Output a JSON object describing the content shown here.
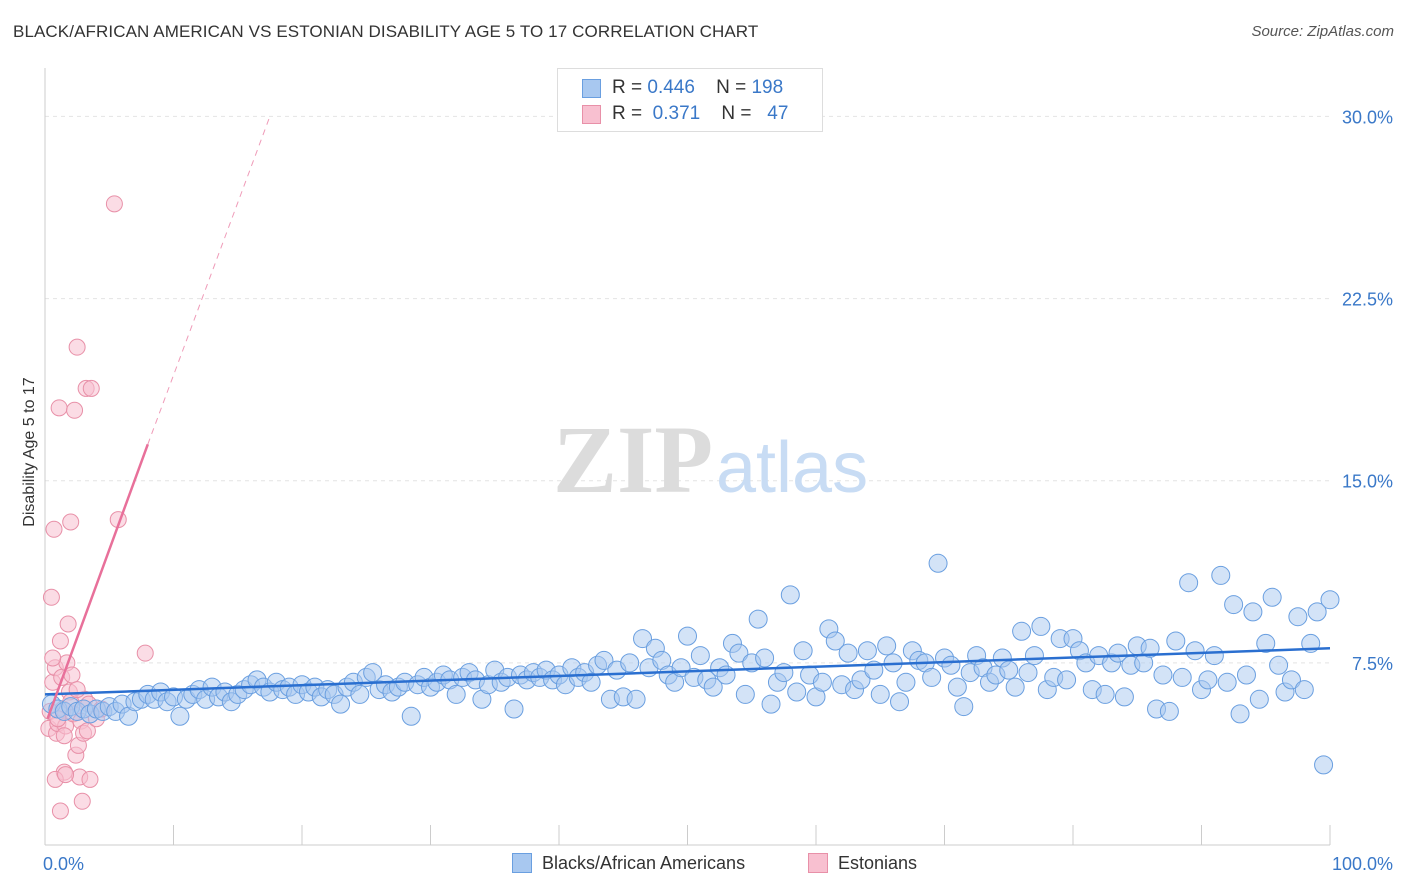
{
  "title": "BLACK/AFRICAN AMERICAN VS ESTONIAN DISABILITY AGE 5 TO 17 CORRELATION CHART",
  "source": "Source: ZipAtlas.com",
  "watermark": {
    "zip": "ZIP",
    "atlas": "atlas"
  },
  "legend": {
    "rows": [
      {
        "r_label": "R =",
        "r_value": "0.446",
        "n_label": "N =",
        "n_value": "198",
        "color": "#a8c8f0",
        "border": "#6a9fe0"
      },
      {
        "r_label": "R =",
        "r_value": "0.371",
        "n_label": "N =",
        "n_value": "47",
        "color": "#f8c0d0",
        "border": "#e890a8"
      }
    ]
  },
  "bottom_legend": [
    {
      "label": "Blacks/African Americans",
      "color": "#a8c8f0",
      "border": "#6a9fe0"
    },
    {
      "label": "Estonians",
      "color": "#f8c0d0",
      "border": "#e890a8"
    }
  ],
  "chart_data": {
    "type": "scatter",
    "title": "BLACK/AFRICAN AMERICAN VS ESTONIAN DISABILITY AGE 5 TO 17 CORRELATION CHART",
    "xlabel": "",
    "ylabel": "Disability Age 5 to 17",
    "xlim": [
      0,
      100
    ],
    "ylim": [
      0,
      31.5
    ],
    "x_tick_labels": [
      "0.0%",
      "100.0%"
    ],
    "y_ticks": [
      7.5,
      15.0,
      22.5,
      30.0
    ],
    "y_tick_labels": [
      "7.5%",
      "15.0%",
      "22.5%",
      "30.0%"
    ],
    "grid": true,
    "legend_position": "top-center",
    "colors": {
      "blue": "#6a9fe0",
      "blue_fill": "#a8c8f0",
      "blue_line": "#2a6fd0",
      "pink": "#e890a8",
      "pink_fill": "#f8c0d0",
      "pink_line": "#e8709a",
      "tick_label": "#3a78c8"
    },
    "series": [
      {
        "name": "Blacks/African Americans",
        "trend": {
          "x": [
            0,
            100
          ],
          "y": [
            6.2,
            8.1
          ]
        },
        "points": [
          [
            0.5,
            5.8
          ],
          [
            1.0,
            5.6
          ],
          [
            1.5,
            5.5
          ],
          [
            2.0,
            5.7
          ],
          [
            2.5,
            5.5
          ],
          [
            3.0,
            5.6
          ],
          [
            3.5,
            5.4
          ],
          [
            4.0,
            5.6
          ],
          [
            4.5,
            5.5
          ],
          [
            5.0,
            5.7
          ],
          [
            5.5,
            5.5
          ],
          [
            6.0,
            5.8
          ],
          [
            6.5,
            5.3
          ],
          [
            7.0,
            5.9
          ],
          [
            7.5,
            6.0
          ],
          [
            8.0,
            6.2
          ],
          [
            8.5,
            6.0
          ],
          [
            9.0,
            6.3
          ],
          [
            9.5,
            5.9
          ],
          [
            10.0,
            6.1
          ],
          [
            10.5,
            5.3
          ],
          [
            11.0,
            6.0
          ],
          [
            11.5,
            6.2
          ],
          [
            12.0,
            6.4
          ],
          [
            12.5,
            6.0
          ],
          [
            13.0,
            6.5
          ],
          [
            13.5,
            6.1
          ],
          [
            14.0,
            6.3
          ],
          [
            14.5,
            5.9
          ],
          [
            15.0,
            6.2
          ],
          [
            15.5,
            6.4
          ],
          [
            16.0,
            6.6
          ],
          [
            16.5,
            6.8
          ],
          [
            17.0,
            6.5
          ],
          [
            17.5,
            6.3
          ],
          [
            18.0,
            6.7
          ],
          [
            18.5,
            6.4
          ],
          [
            19.0,
            6.5
          ],
          [
            19.5,
            6.2
          ],
          [
            20.0,
            6.6
          ],
          [
            20.5,
            6.3
          ],
          [
            21.0,
            6.5
          ],
          [
            21.5,
            6.1
          ],
          [
            22.0,
            6.4
          ],
          [
            22.5,
            6.2
          ],
          [
            23.0,
            5.8
          ],
          [
            23.5,
            6.5
          ],
          [
            24.0,
            6.7
          ],
          [
            24.5,
            6.2
          ],
          [
            25.0,
            6.9
          ],
          [
            25.5,
            7.1
          ],
          [
            26.0,
            6.4
          ],
          [
            26.5,
            6.6
          ],
          [
            27.0,
            6.3
          ],
          [
            27.5,
            6.5
          ],
          [
            28.0,
            6.7
          ],
          [
            28.5,
            5.3
          ],
          [
            29.0,
            6.6
          ],
          [
            29.5,
            6.9
          ],
          [
            30.0,
            6.5
          ],
          [
            30.5,
            6.7
          ],
          [
            31.0,
            7.0
          ],
          [
            31.5,
            6.8
          ],
          [
            32.0,
            6.2
          ],
          [
            32.5,
            6.9
          ],
          [
            33.0,
            7.1
          ],
          [
            33.5,
            6.8
          ],
          [
            34.0,
            6.0
          ],
          [
            34.5,
            6.6
          ],
          [
            35.0,
            7.2
          ],
          [
            35.5,
            6.7
          ],
          [
            36.0,
            6.9
          ],
          [
            36.5,
            5.6
          ],
          [
            37.0,
            7.0
          ],
          [
            37.5,
            6.8
          ],
          [
            38.0,
            7.1
          ],
          [
            38.5,
            6.9
          ],
          [
            39.0,
            7.2
          ],
          [
            39.5,
            6.8
          ],
          [
            40.0,
            7.0
          ],
          [
            40.5,
            6.6
          ],
          [
            41.0,
            7.3
          ],
          [
            41.5,
            6.9
          ],
          [
            42.0,
            7.1
          ],
          [
            42.5,
            6.7
          ],
          [
            43.0,
            7.4
          ],
          [
            43.5,
            7.6
          ],
          [
            44.0,
            6.0
          ],
          [
            44.5,
            7.2
          ],
          [
            45.0,
            6.1
          ],
          [
            45.5,
            7.5
          ],
          [
            46.0,
            6.0
          ],
          [
            46.5,
            8.5
          ],
          [
            47.0,
            7.3
          ],
          [
            47.5,
            8.1
          ],
          [
            48.0,
            7.6
          ],
          [
            48.5,
            7.0
          ],
          [
            49.0,
            6.7
          ],
          [
            49.5,
            7.3
          ],
          [
            50.0,
            8.6
          ],
          [
            50.5,
            6.9
          ],
          [
            51.0,
            7.8
          ],
          [
            51.5,
            6.8
          ],
          [
            52.0,
            6.5
          ],
          [
            52.5,
            7.3
          ],
          [
            53.0,
            7.0
          ],
          [
            53.5,
            8.3
          ],
          [
            54.0,
            7.9
          ],
          [
            54.5,
            6.2
          ],
          [
            55.0,
            7.5
          ],
          [
            55.5,
            9.3
          ],
          [
            56.0,
            7.7
          ],
          [
            56.5,
            5.8
          ],
          [
            57.0,
            6.7
          ],
          [
            57.5,
            7.1
          ],
          [
            58.0,
            10.3
          ],
          [
            58.5,
            6.3
          ],
          [
            59.0,
            8.0
          ],
          [
            59.5,
            7.0
          ],
          [
            60.0,
            6.1
          ],
          [
            60.5,
            6.7
          ],
          [
            61.0,
            8.9
          ],
          [
            61.5,
            8.4
          ],
          [
            62.0,
            6.6
          ],
          [
            62.5,
            7.9
          ],
          [
            63.0,
            6.4
          ],
          [
            63.5,
            6.8
          ],
          [
            64.0,
            8.0
          ],
          [
            64.5,
            7.2
          ],
          [
            65.0,
            6.2
          ],
          [
            65.5,
            8.2
          ],
          [
            66.0,
            7.5
          ],
          [
            66.5,
            5.9
          ],
          [
            67.0,
            6.7
          ],
          [
            67.5,
            8.0
          ],
          [
            68.0,
            7.6
          ],
          [
            68.5,
            7.5
          ],
          [
            69.0,
            6.9
          ],
          [
            69.5,
            11.6
          ],
          [
            70.0,
            7.7
          ],
          [
            70.5,
            7.4
          ],
          [
            71.0,
            6.5
          ],
          [
            71.5,
            5.7
          ],
          [
            72.0,
            7.1
          ],
          [
            72.5,
            7.8
          ],
          [
            73.0,
            7.3
          ],
          [
            73.5,
            6.7
          ],
          [
            74.0,
            7.0
          ],
          [
            74.5,
            7.7
          ],
          [
            75.0,
            7.2
          ],
          [
            75.5,
            6.5
          ],
          [
            76.0,
            8.8
          ],
          [
            76.5,
            7.1
          ],
          [
            77.0,
            7.8
          ],
          [
            77.5,
            9.0
          ],
          [
            78.0,
            6.4
          ],
          [
            78.5,
            6.9
          ],
          [
            79.0,
            8.5
          ],
          [
            79.5,
            6.8
          ],
          [
            80.0,
            8.5
          ],
          [
            80.5,
            8.0
          ],
          [
            81.0,
            7.5
          ],
          [
            81.5,
            6.4
          ],
          [
            82.0,
            7.8
          ],
          [
            82.5,
            6.2
          ],
          [
            83.0,
            7.5
          ],
          [
            83.5,
            7.9
          ],
          [
            84.0,
            6.1
          ],
          [
            84.5,
            7.4
          ],
          [
            85.0,
            8.2
          ],
          [
            85.5,
            7.5
          ],
          [
            86.0,
            8.1
          ],
          [
            86.5,
            5.6
          ],
          [
            87.0,
            7.0
          ],
          [
            87.5,
            5.5
          ],
          [
            88.0,
            8.4
          ],
          [
            88.5,
            6.9
          ],
          [
            89.0,
            10.8
          ],
          [
            89.5,
            8.0
          ],
          [
            90.0,
            6.4
          ],
          [
            90.5,
            6.8
          ],
          [
            91.0,
            7.8
          ],
          [
            91.5,
            11.1
          ],
          [
            92.0,
            6.7
          ],
          [
            92.5,
            9.9
          ],
          [
            93.0,
            5.4
          ],
          [
            93.5,
            7.0
          ],
          [
            94.0,
            9.6
          ],
          [
            94.5,
            6.0
          ],
          [
            95.0,
            8.3
          ],
          [
            95.5,
            10.2
          ],
          [
            96.0,
            7.4
          ],
          [
            96.5,
            6.3
          ],
          [
            97.0,
            6.8
          ],
          [
            97.5,
            9.4
          ],
          [
            98.0,
            6.4
          ],
          [
            98.5,
            8.3
          ],
          [
            99.0,
            9.6
          ],
          [
            99.5,
            3.3
          ],
          [
            100.0,
            10.1
          ]
        ]
      },
      {
        "name": "Estonians",
        "trend": {
          "x": [
            0.2,
            8.0
          ],
          "y": [
            5.2,
            16.5
          ]
        },
        "trend_extension": {
          "x": [
            8.0,
            17.5
          ],
          "y": [
            16.5,
            30.0
          ]
        },
        "points": [
          [
            0.3,
            4.8
          ],
          [
            0.4,
            5.5
          ],
          [
            0.5,
            10.2
          ],
          [
            0.6,
            6.7
          ],
          [
            0.7,
            13.0
          ],
          [
            0.8,
            7.3
          ],
          [
            0.9,
            4.6
          ],
          [
            1.0,
            5.0
          ],
          [
            1.1,
            18.0
          ],
          [
            1.2,
            8.4
          ],
          [
            1.3,
            6.9
          ],
          [
            1.4,
            5.6
          ],
          [
            1.5,
            3.0
          ],
          [
            1.6,
            4.9
          ],
          [
            1.7,
            7.5
          ],
          [
            1.8,
            9.1
          ],
          [
            1.9,
            6.3
          ],
          [
            2.0,
            13.3
          ],
          [
            2.1,
            7.0
          ],
          [
            2.2,
            5.4
          ],
          [
            2.3,
            17.9
          ],
          [
            2.4,
            3.7
          ],
          [
            2.5,
            20.5
          ],
          [
            2.6,
            4.1
          ],
          [
            2.7,
            2.8
          ],
          [
            2.8,
            5.1
          ],
          [
            2.9,
            1.8
          ],
          [
            3.0,
            4.6
          ],
          [
            3.1,
            6.0
          ],
          [
            3.2,
            18.8
          ],
          [
            3.3,
            4.7
          ],
          [
            3.4,
            5.8
          ],
          [
            3.5,
            2.7
          ],
          [
            4.0,
            5.2
          ],
          [
            4.4,
            5.6
          ],
          [
            5.4,
            26.4
          ],
          [
            5.7,
            13.4
          ],
          [
            7.8,
            7.9
          ],
          [
            1.0,
            5.2
          ],
          [
            1.5,
            4.5
          ],
          [
            2.0,
            5.9
          ],
          [
            2.5,
            6.4
          ],
          [
            0.8,
            2.7
          ],
          [
            1.2,
            1.4
          ],
          [
            3.6,
            18.8
          ],
          [
            0.6,
            7.7
          ],
          [
            1.6,
            2.9
          ]
        ]
      }
    ]
  }
}
